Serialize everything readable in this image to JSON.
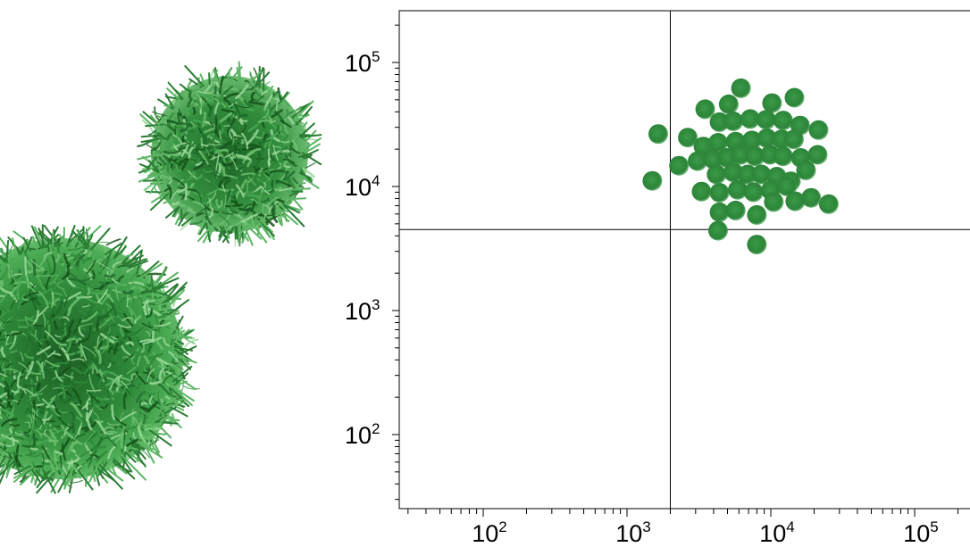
{
  "colors": {
    "dot": "#2f8c3e",
    "dot_edge": "#1f6e2c",
    "cell_dark": "#1f6b2a",
    "cell_mid": "#3a9a45",
    "cell_light": "#7cc77f",
    "axis": "#000000"
  },
  "illustration": {
    "icon_names": [
      "lymphocyte-cell-large-icon",
      "lymphocyte-cell-small-icon"
    ]
  },
  "chart_data": {
    "type": "scatter",
    "xscale": "log",
    "yscale": "log",
    "xlim": [
      25,
      230000
    ],
    "ylim": [
      25,
      250000
    ],
    "x_ticks": [
      {
        "base": "10",
        "exp": "2",
        "value": 100
      },
      {
        "base": "10",
        "exp": "3",
        "value": 1000
      },
      {
        "base": "10",
        "exp": "4",
        "value": 10000
      },
      {
        "base": "10",
        "exp": "5",
        "value": 100000
      }
    ],
    "y_ticks": [
      {
        "base": "10",
        "exp": "2",
        "value": 100
      },
      {
        "base": "10",
        "exp": "3",
        "value": 1000
      },
      {
        "base": "10",
        "exp": "4",
        "value": 10000
      },
      {
        "base": "10",
        "exp": "5",
        "value": 100000
      }
    ],
    "quadrant_gate": {
      "x": 2000,
      "y": 4500
    },
    "points": [
      [
        6200,
        62000
      ],
      [
        3500,
        42000
      ],
      [
        5100,
        46000
      ],
      [
        10200,
        47000
      ],
      [
        14600,
        52000
      ],
      [
        1650,
        26500
      ],
      [
        2650,
        24800
      ],
      [
        4400,
        33000
      ],
      [
        5500,
        33500
      ],
      [
        7200,
        35000
      ],
      [
        9300,
        34500
      ],
      [
        12200,
        34000
      ],
      [
        16000,
        31000
      ],
      [
        21500,
        28500
      ],
      [
        3400,
        21000
      ],
      [
        4300,
        22500
      ],
      [
        5700,
        23000
      ],
      [
        7400,
        23500
      ],
      [
        9400,
        24500
      ],
      [
        11900,
        24000
      ],
      [
        14500,
        24000
      ],
      [
        2300,
        14700
      ],
      [
        3100,
        16000
      ],
      [
        4000,
        16500
      ],
      [
        5000,
        17000
      ],
      [
        6200,
        18000
      ],
      [
        7800,
        17500
      ],
      [
        9900,
        18000
      ],
      [
        12200,
        17500
      ],
      [
        16200,
        17000
      ],
      [
        21200,
        18000
      ],
      [
        1500,
        11100
      ],
      [
        4200,
        12500
      ],
      [
        5500,
        13000
      ],
      [
        6900,
        12500
      ],
      [
        8600,
        12500
      ],
      [
        11000,
        12000
      ],
      [
        13800,
        11000
      ],
      [
        17600,
        13500
      ],
      [
        3300,
        9100
      ],
      [
        4400,
        8900
      ],
      [
        5900,
        9400
      ],
      [
        7600,
        9000
      ],
      [
        10000,
        9300
      ],
      [
        13000,
        10000
      ],
      [
        4400,
        6200
      ],
      [
        5700,
        6400
      ],
      [
        8000,
        5900
      ],
      [
        10500,
        7500
      ],
      [
        14800,
        7600
      ],
      [
        25300,
        7200
      ],
      [
        4300,
        4400
      ],
      [
        8000,
        3400
      ],
      [
        19100,
        8100
      ]
    ]
  }
}
